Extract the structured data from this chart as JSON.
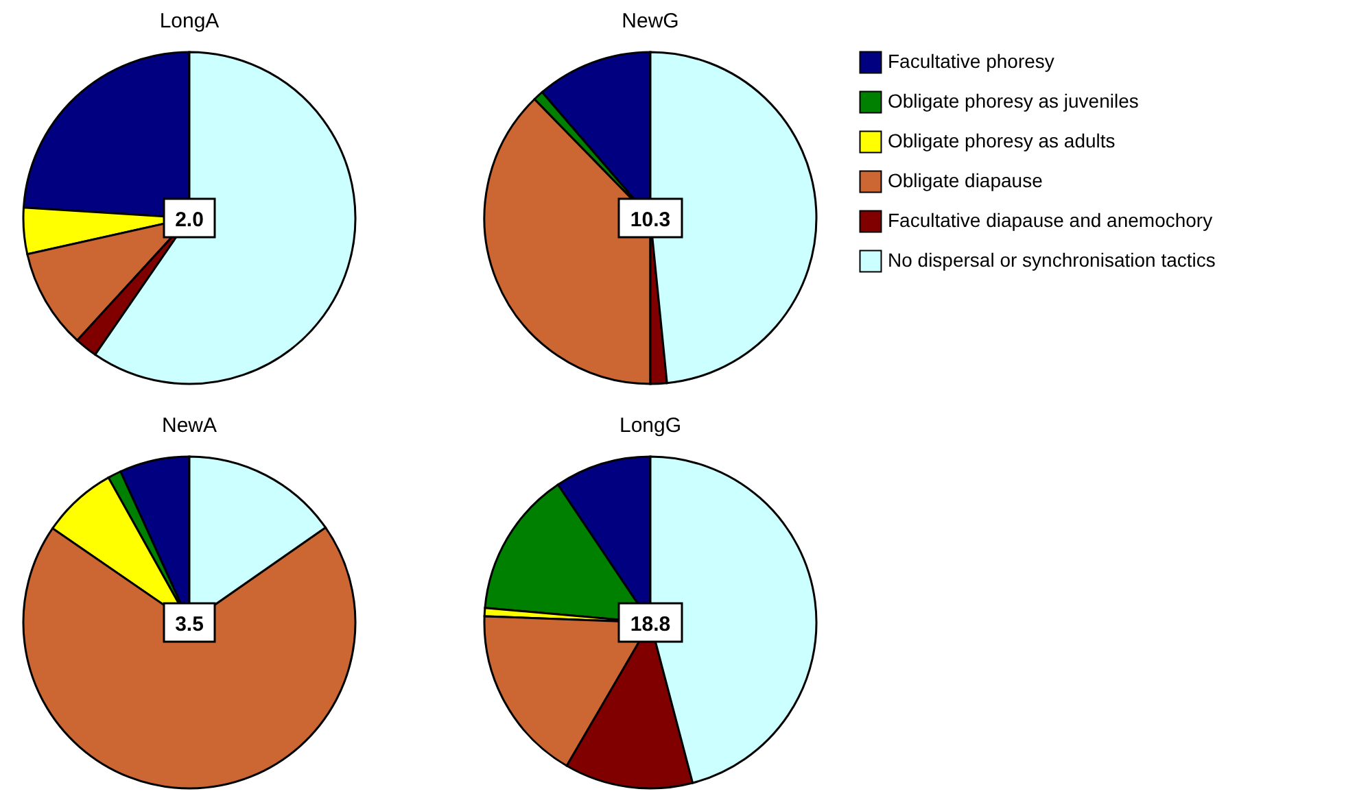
{
  "chart_data": [
    {
      "type": "pie",
      "title": "LongA",
      "categories": [
        null,
        null,
        null,
        null,
        null,
        null
      ],
      "values": [
        24,
        null,
        4.5,
        9.7,
        2.2,
        59.6
      ],
      "colors": [
        "#000080",
        "#008000",
        "#ffff00",
        "#cc6633",
        "#800000",
        "#ccffff"
      ],
      "annotations": [
        "2.0"
      ]
    },
    {
      "type": "pie",
      "title": "NewG",
      "categories": [
        "Facultative phoresy",
        "Obligate phoresy as juveniles",
        "Obligate phoresy as adults",
        "Obligate diapause",
        "Facultative diapause and anemochory",
        "No dispersal or synchronisation tactics"
      ],
      "values": [
        11.3,
        1,
        null,
        37.7,
        1.6,
        48.4
      ],
      "colors": [
        "#000080",
        "#008000",
        "#ffff00",
        "#cc6633",
        "#800000",
        "#ccffff"
      ],
      "annotations": [
        "10.3"
      ],
      "legend": "right"
    },
    {
      "type": "pie",
      "title": "NewA",
      "categories": [
        null,
        null,
        null,
        null,
        null,
        null
      ],
      "values": [
        6.8,
        1.3,
        7.3,
        69.3,
        null,
        15.3
      ],
      "colors": [
        "#000080",
        "#008000",
        "#ffff00",
        "#cc6633",
        "#800000",
        "#ccffff"
      ],
      "annotations": [
        "3.5"
      ]
    },
    {
      "type": "pie",
      "title": "LongG",
      "categories": [
        null,
        null,
        null,
        null,
        null,
        null
      ],
      "values": [
        9.4,
        14.2,
        0.8,
        17.2,
        12.5,
        45.9
      ],
      "colors": [
        "#000080",
        "#008000",
        "#ffff00",
        "#cc6633",
        "#800000",
        "#ccffff"
      ],
      "annotations": [
        "18.8"
      ]
    }
  ]
}
